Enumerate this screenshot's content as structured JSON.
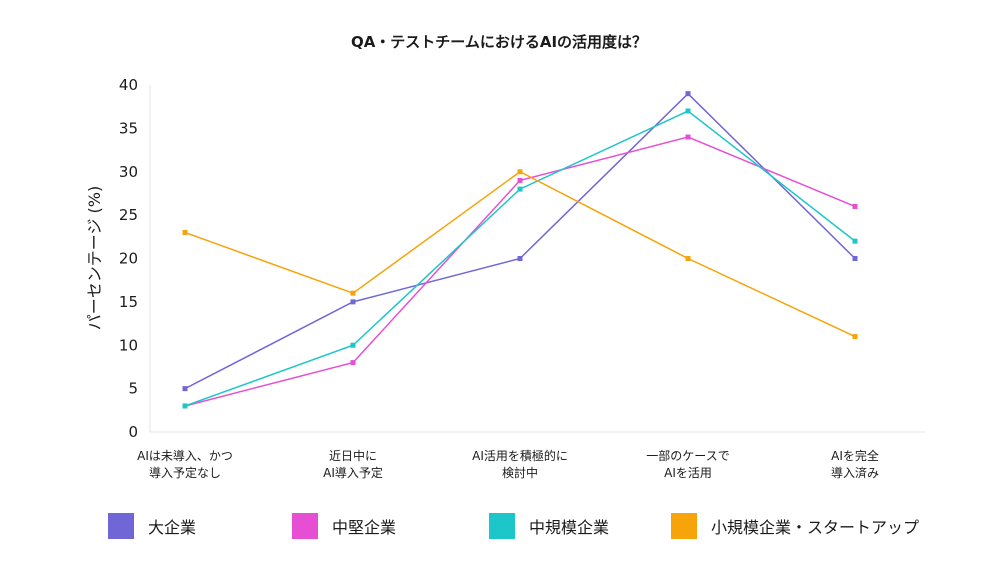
{
  "chart_data": {
    "type": "line",
    "title": "QA・テストチームにおけるAIの活用度は？",
    "ylabel": "パーセンテージ (%)",
    "xlabel": "",
    "ylim": [
      0,
      40
    ],
    "yticks": [
      0,
      5,
      10,
      15,
      20,
      25,
      30,
      35,
      40
    ],
    "grid": false,
    "legend_position": "bottom",
    "categories": [
      [
        "AIは未導入、かつ",
        "導入予定なし"
      ],
      [
        "近日中に",
        "AI導入予定"
      ],
      [
        "AI活用を積極的に",
        "検討中"
      ],
      [
        "一部のケースで",
        "AIを活用"
      ],
      [
        "AIを完全",
        "導入済み"
      ]
    ],
    "series": [
      {
        "name": "大企業",
        "color": "#7166d6",
        "values": [
          5,
          15,
          20,
          39,
          20
        ]
      },
      {
        "name": "中堅企業",
        "color": "#e64fd4",
        "values": [
          3,
          8,
          29,
          34,
          26
        ]
      },
      {
        "name": "中規模企業",
        "color": "#1dc6c8",
        "values": [
          3,
          10,
          28,
          37,
          22
        ]
      },
      {
        "name": "小規模企業・スタートアップ",
        "color": "#f7a30a",
        "values": [
          23,
          16,
          30,
          20,
          11
        ]
      }
    ]
  }
}
